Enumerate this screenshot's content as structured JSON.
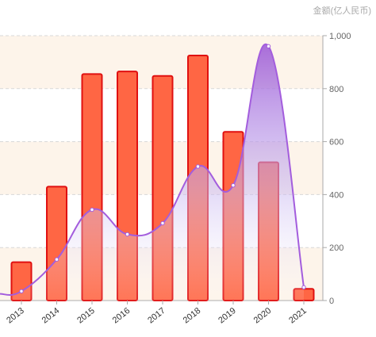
{
  "chart_data": {
    "type": "bar",
    "title": "",
    "xlabel": "",
    "ylabel": "金额(亿人民币)",
    "categories": [
      "2013",
      "2014",
      "2015",
      "2016",
      "2017",
      "2018",
      "2019",
      "2020",
      "2021"
    ],
    "series": [
      {
        "type": "bar",
        "values": [
          145,
          430,
          855,
          865,
          848,
          925,
          637,
          522,
          44
        ],
        "color": "#ff6644",
        "stroke": "#e01010"
      },
      {
        "type": "area-line",
        "values": [
          35,
          155,
          343,
          250,
          292,
          506,
          435,
          960,
          50
        ],
        "color": "#a35ddd"
      }
    ],
    "line_start_value": 25,
    "ylim": [
      0,
      1000
    ],
    "y_ticks": [
      0,
      200,
      400,
      600,
      800,
      1000
    ],
    "y_tick_labels": [
      "0",
      "200",
      "400",
      "600",
      "800",
      "1,000"
    ],
    "y_axis_position": "right",
    "grid": true,
    "legend": "none",
    "band_color": "#fdf4ea"
  }
}
